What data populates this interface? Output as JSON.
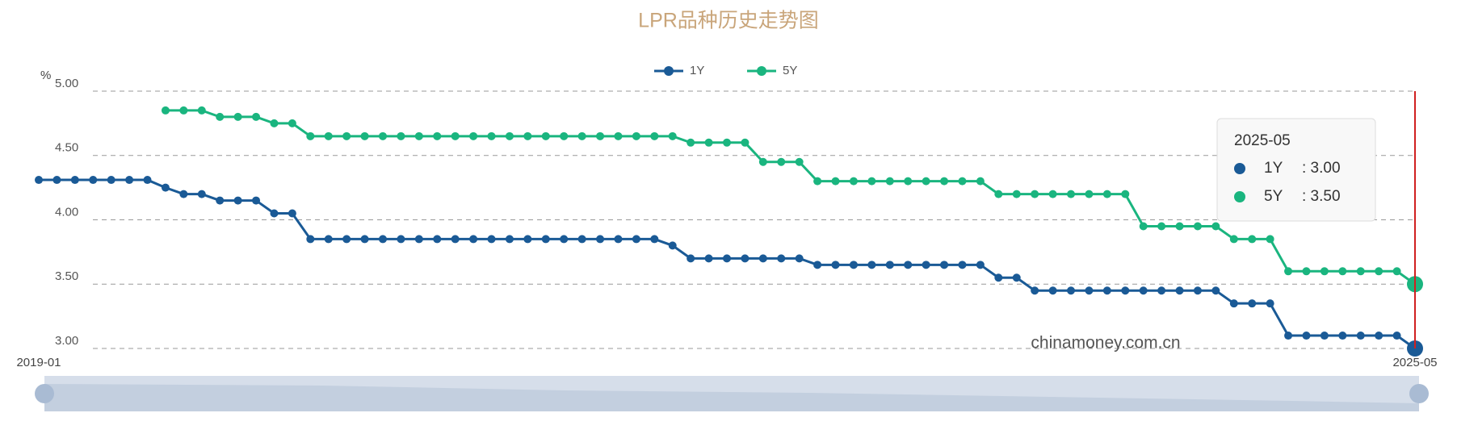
{
  "chart_data": {
    "type": "line",
    "title": "LPR品种历史走势图",
    "y_unit": "%",
    "watermark": "chinamoney.com.cn",
    "categories": [
      "2019-01",
      null,
      null,
      null,
      null,
      null,
      null,
      null,
      null,
      null,
      null,
      null,
      null,
      null,
      null,
      null,
      null,
      null,
      null,
      null,
      null,
      null,
      null,
      null,
      null,
      null,
      null,
      null,
      null,
      null,
      null,
      null,
      null,
      null,
      null,
      null,
      null,
      null,
      null,
      null,
      null,
      null,
      null,
      null,
      null,
      null,
      null,
      null,
      null,
      null,
      null,
      null,
      null,
      null,
      null,
      null,
      null,
      null,
      null,
      null,
      null,
      null,
      null,
      null,
      null,
      null,
      null,
      null,
      null,
      null,
      null,
      null,
      null,
      null,
      null,
      null,
      "2025-05"
    ],
    "series": [
      {
        "name": "1Y",
        "color": "#1a5a96",
        "values": [
          4.31,
          4.31,
          4.31,
          4.31,
          4.31,
          4.31,
          4.31,
          4.25,
          4.2,
          4.2,
          4.15,
          4.15,
          4.15,
          4.05,
          4.05,
          3.85,
          3.85,
          3.85,
          3.85,
          3.85,
          3.85,
          3.85,
          3.85,
          3.85,
          3.85,
          3.85,
          3.85,
          3.85,
          3.85,
          3.85,
          3.85,
          3.85,
          3.85,
          3.85,
          3.85,
          3.8,
          3.7,
          3.7,
          3.7,
          3.7,
          3.7,
          3.7,
          3.7,
          3.65,
          3.65,
          3.65,
          3.65,
          3.65,
          3.65,
          3.65,
          3.65,
          3.65,
          3.65,
          3.55,
          3.55,
          3.45,
          3.45,
          3.45,
          3.45,
          3.45,
          3.45,
          3.45,
          3.45,
          3.45,
          3.45,
          3.45,
          3.35,
          3.35,
          3.35,
          3.1,
          3.1,
          3.1,
          3.1,
          3.1,
          3.1,
          3.1,
          3
        ]
      },
      {
        "name": "5Y",
        "color": "#1ab57f",
        "values": [
          null,
          null,
          null,
          null,
          null,
          null,
          null,
          4.85,
          4.85,
          4.85,
          4.8,
          4.8,
          4.8,
          4.75,
          4.75,
          4.65,
          4.65,
          4.65,
          4.65,
          4.65,
          4.65,
          4.65,
          4.65,
          4.65,
          4.65,
          4.65,
          4.65,
          4.65,
          4.65,
          4.65,
          4.65,
          4.65,
          4.65,
          4.65,
          4.65,
          4.65,
          4.6,
          4.6,
          4.6,
          4.6,
          4.45,
          4.45,
          4.45,
          4.3,
          4.3,
          4.3,
          4.3,
          4.3,
          4.3,
          4.3,
          4.3,
          4.3,
          4.3,
          4.2,
          4.2,
          4.2,
          4.2,
          4.2,
          4.2,
          4.2,
          4.2,
          3.95,
          3.95,
          3.95,
          3.95,
          3.95,
          3.85,
          3.85,
          3.85,
          3.6,
          3.6,
          3.6,
          3.6,
          3.6,
          3.6,
          3.6,
          3.5
        ]
      }
    ],
    "ylim": [
      3,
      5
    ],
    "yticks": [
      {
        "value": 3,
        "label": "3.00"
      },
      {
        "value": 3.5,
        "label": "3.50"
      },
      {
        "value": 4,
        "label": "4.00"
      },
      {
        "value": 4.5,
        "label": "4.50"
      },
      {
        "value": 5,
        "label": "5.00"
      }
    ],
    "grid": true,
    "tooltip": {
      "values": [
        ": 3.00",
        ": 3.50"
      ]
    }
  }
}
